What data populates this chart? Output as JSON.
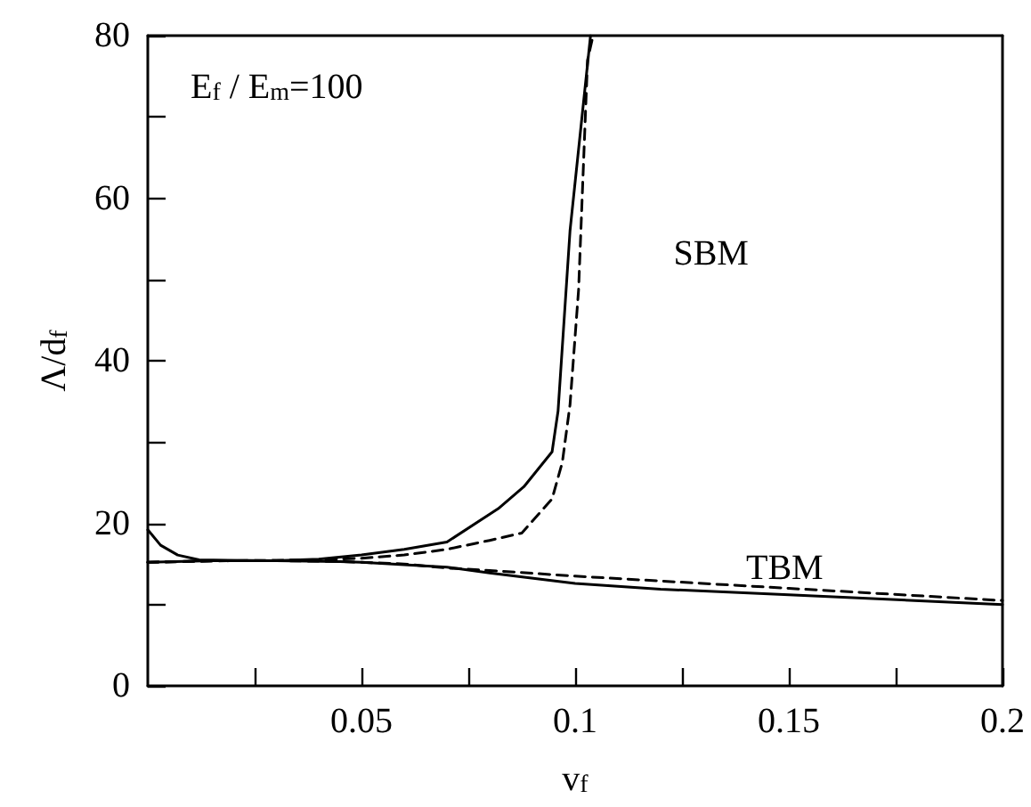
{
  "chart_data": {
    "type": "line",
    "xlabel": "v$_{f}$",
    "ylabel": "Λ/d$_{f}$",
    "xlim": [
      0,
      0.2
    ],
    "ylim": [
      0,
      80
    ],
    "xticks": [
      {
        "value": 0.025,
        "label": null
      },
      0.05,
      {
        "value": 0.075,
        "label": null
      },
      0.1,
      {
        "value": 0.125,
        "label": null
      },
      0.15,
      {
        "value": 0.175,
        "label": null
      },
      0.2
    ],
    "yticks": [
      0,
      {
        "value": 10,
        "label": null
      },
      20,
      {
        "value": 30,
        "label": null
      },
      40,
      {
        "value": 50,
        "label": null
      },
      60,
      {
        "value": 70,
        "label": null
      },
      80
    ],
    "grid": false,
    "marker": "none",
    "series": [
      {
        "color": "#000000",
        "line_style": "solid",
        "x": [
          0,
          0.003,
          0.007,
          0.012,
          0.03,
          0.04,
          0.05,
          0.06,
          0.07,
          0.082,
          0.088,
          0.0946,
          0.096,
          0.0988,
          0.1036
        ],
        "values": [
          19.2,
          17.3,
          16.1,
          15.5,
          15.4,
          15.6,
          16.1,
          16.8,
          17.7,
          21.8,
          24.5,
          28.8,
          33.8,
          56,
          80
        ]
      },
      {
        "color": "#000000",
        "line_style": "dashed",
        "x": [
          0,
          0.02,
          0.04,
          0.05,
          0.06,
          0.07,
          0.08,
          0.0875,
          0.0946,
          0.097,
          0.0988,
          0.1008,
          0.1029,
          0.1042
        ],
        "values": [
          15.2,
          15.4,
          15.5,
          15.7,
          16.1,
          16.8,
          17.9,
          18.8,
          23,
          27.5,
          34.6,
          48.7,
          77,
          80
        ]
      },
      {
        "color": "#000000",
        "line_style": "solid",
        "x": [
          0,
          0.015,
          0.03,
          0.045,
          0.05,
          0.06,
          0.07,
          0.08,
          0.1,
          0.12,
          0.15,
          0.2
        ],
        "values": [
          15.2,
          15.4,
          15.4,
          15.3,
          15.2,
          14.9,
          14.6,
          13.9,
          12.6,
          11.9,
          11.2,
          10.0
        ]
      },
      {
        "color": "#000000",
        "line_style": "dashed",
        "x": [
          0,
          0.015,
          0.03,
          0.045,
          0.06,
          0.07,
          0.08,
          0.1,
          0.12,
          0.15,
          0.2
        ],
        "values": [
          15.2,
          15.4,
          15.4,
          15.3,
          15.0,
          14.5,
          14.2,
          13.5,
          12.9,
          12.0,
          10.5
        ]
      }
    ],
    "annotations": [
      "E$_{f}$ / E$_{m}$=100",
      "SBM",
      "TBM"
    ]
  }
}
